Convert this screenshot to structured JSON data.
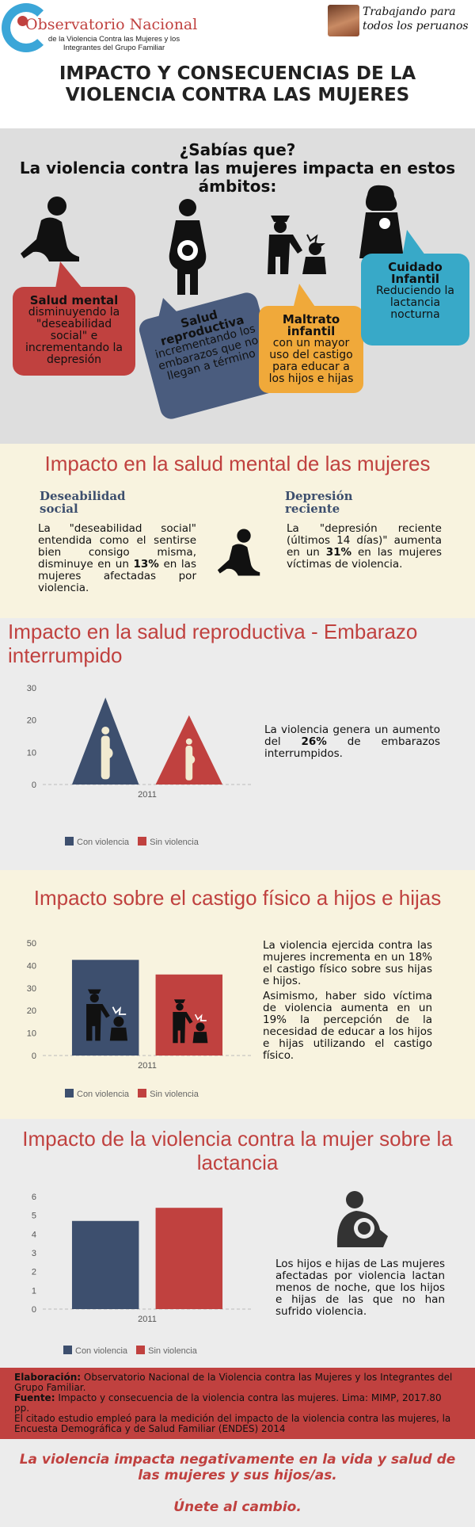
{
  "header": {
    "org_title": "Observatorio Nacional",
    "org_subtitle": "de la Violencia Contra las Mujeres y los Integrantes del Grupo Familiar",
    "slogan": "Trabajando para todos los peruanos",
    "main_title": "IMPACTO Y CONSECUENCIAS DE LA VIOLENCIA CONTRA LAS MUJERES"
  },
  "intro": {
    "title_line1": "¿Sabías que?",
    "title_line2": "La violencia contra las mujeres impacta  en estos ámbitos:",
    "bubbles": [
      {
        "title": "Salud mental",
        "text": "disminuyendo la \"deseabilidad social\" e incrementando la depresión"
      },
      {
        "title": "Salud reproductiva",
        "text": "incrementando los embarazos que no llegan a término"
      },
      {
        "title": "Maltrato infantil",
        "text": "con un mayor uso del castigo para educar a los hijos e hijas"
      },
      {
        "title": "Cuidado Infantil",
        "text": "Reduciendo la lactancia nocturna"
      }
    ],
    "colors": {
      "mental": "#c0413f",
      "reproductiva": "#4a5c7e",
      "maltrato": "#f0a93a",
      "cuidado": "#38a9c8"
    }
  },
  "mental": {
    "heading": "Impacto en la salud mental de las mujeres",
    "left_title": "Deseabilidad social",
    "left_text_pre": "La \"deseabilidad social\" entendida como el sentirse bien consigo misma, disminuye en un ",
    "left_value": "13%",
    "left_text_post": " en las mujeres afectadas por violencia.",
    "right_title": "Depresión reciente",
    "right_text_pre": "La \"depresión reciente (últimos 14 días)\" aumenta en un ",
    "right_value": "31%",
    "right_text_post": " en las mujeres víctimas de violencia."
  },
  "reproductive": {
    "heading": "Impacto en la salud reproductiva - Embarazo interrumpido",
    "text_pre": "La violencia genera un aumento del ",
    "text_value": "26%",
    "text_post": " de embarazos interrumpidos.",
    "chart_data": {
      "type": "bar",
      "categories": [
        "2011"
      ],
      "series": [
        {
          "name": "Con violencia",
          "values": [
            27
          ]
        },
        {
          "name": "Sin violencia",
          "values": [
            21.5
          ]
        }
      ],
      "ylim": [
        0,
        30
      ],
      "yticks": [
        "30",
        "20",
        "10",
        "0"
      ],
      "colors": [
        "#3d4f6e",
        "#c0413f"
      ],
      "legend": "bottom"
    }
  },
  "punishment": {
    "heading": "Impacto sobre el castigo físico a hijos e hijas",
    "text1": "La violencia ejercida contra las mujeres incrementa en un 18% el castigo físico sobre sus hijas e hijos.",
    "text2": "Asimismo, haber sido víctima de violencia aumenta en un 19% la percepción de la necesidad de educar a los hijos e hijas utilizando el castigo físico.",
    "chart_data": {
      "type": "bar",
      "categories": [
        "2011"
      ],
      "series": [
        {
          "name": "Con violencia",
          "values": [
            42.5
          ]
        },
        {
          "name": "Sin violencia",
          "values": [
            36
          ]
        }
      ],
      "ylim": [
        0,
        50
      ],
      "yticks": [
        "50",
        "40",
        "30",
        "20",
        "10",
        "0"
      ],
      "colors": [
        "#3d4f6e",
        "#c0413f"
      ],
      "legend": "bottom"
    }
  },
  "lactation": {
    "heading": "Impacto de la violencia contra la mujer sobre la lactancia",
    "text": "Los hijos e hijas de Las mujeres afectadas por violencia lactan menos de noche, que los hijos e hijas de las que no han sufrido violencia.",
    "chart_data": {
      "type": "bar",
      "categories": [
        "2011"
      ],
      "series": [
        {
          "name": "Con violencia",
          "values": [
            4.7
          ]
        },
        {
          "name": "Sin violencia",
          "values": [
            5.4
          ]
        }
      ],
      "ylim": [
        0,
        6
      ],
      "yticks": [
        "6",
        "5",
        "4",
        "3",
        "2",
        "1",
        "0"
      ],
      "colors": [
        "#3d4f6e",
        "#c0413f"
      ],
      "legend": "bottom"
    }
  },
  "credits": {
    "elab_label": "Elaboración:",
    "elab_text": " Observatorio Nacional de la Violencia contra las Mujeres y los Integrantes del Grupo Familiar.",
    "src_label": "Fuente:",
    "src_text": " Impacto y consecuencia de la violencia contra las mujeres. Lima: MIMP, 2017.80 pp.",
    "note": "El citado estudio empleó para la medición del impacto de la violencia contra las mujeres, la Encuesta Demográfica y de Salud Familiar (ENDES) 2014"
  },
  "closing": {
    "line1": "La  violencia impacta negativamente en la vida y salud de las mujeres y sus hijos/as.",
    "line2": "Únete al cambio."
  }
}
